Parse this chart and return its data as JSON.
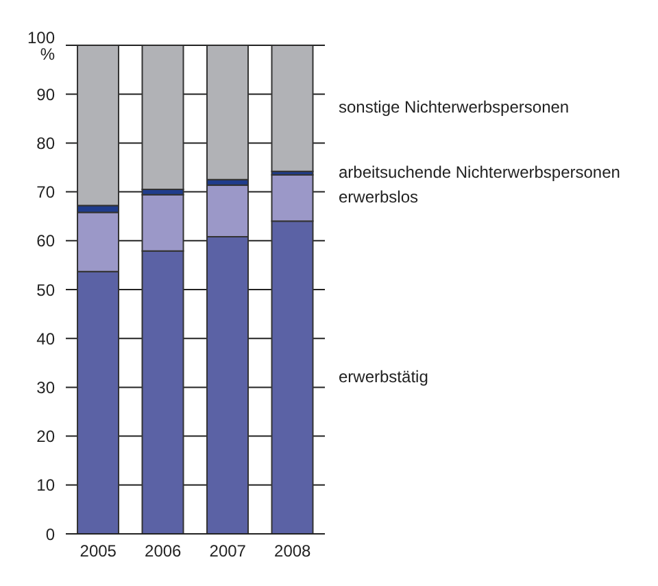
{
  "chart_data": {
    "type": "bar",
    "stacked": true,
    "categories": [
      "2005",
      "2006",
      "2007",
      "2008"
    ],
    "series": [
      {
        "name": "erwerbstätig",
        "color": "#5b62a5",
        "values": [
          53.7,
          57.9,
          60.8,
          64.0
        ]
      },
      {
        "name": "erwerbslos",
        "color": "#9b98c8",
        "values": [
          12.1,
          11.5,
          10.6,
          9.5
        ]
      },
      {
        "name": "arbeitsuchende Nichterwerbspersonen",
        "color": "#1f3c8c",
        "values": [
          1.4,
          1.1,
          1.1,
          0.7
        ]
      },
      {
        "name": "sonstige Nichterwerbspersonen",
        "color": "#b1b2b6",
        "values": [
          32.8,
          29.5,
          27.5,
          25.8
        ]
      }
    ],
    "ylim": [
      0,
      100
    ],
    "yticks": [
      0,
      10,
      20,
      30,
      40,
      50,
      60,
      70,
      80,
      90,
      {
        "value": 100,
        "label": "100 %"
      }
    ],
    "grid": "y"
  }
}
